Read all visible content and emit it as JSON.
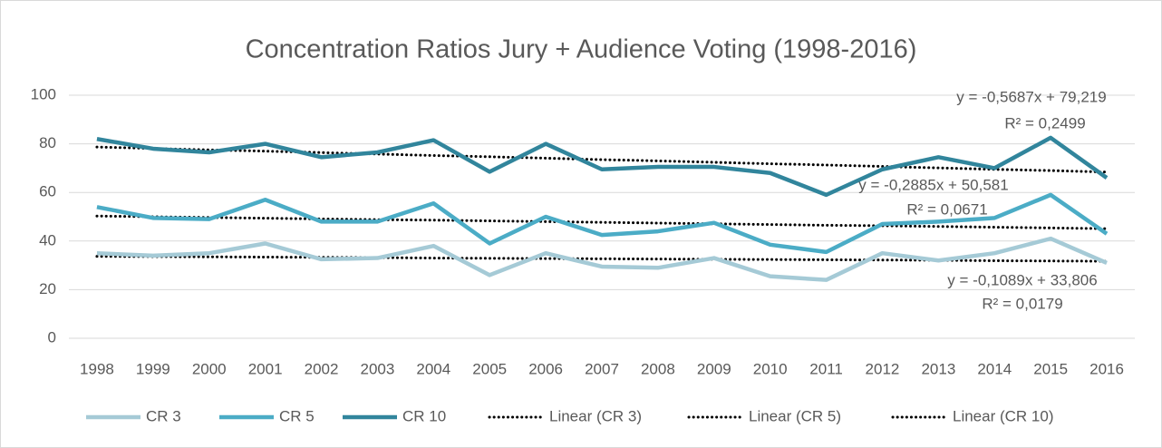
{
  "chart_data": {
    "type": "line",
    "title": "Concentration Ratios Jury + Audience Voting (1998-2016)",
    "categories": [
      "1998",
      "1999",
      "2000",
      "2001",
      "2002",
      "2003",
      "2004",
      "2005",
      "2006",
      "2007",
      "2008",
      "2009",
      "2010",
      "2011",
      "2012",
      "2013",
      "2014",
      "2015",
      "2016"
    ],
    "ylim": [
      0,
      100
    ],
    "yticks": [
      0,
      20,
      40,
      60,
      80,
      100
    ],
    "grid": true,
    "legend": "bottom",
    "series": [
      {
        "name": "CR 3",
        "color": "#a5cad6",
        "style": "solid",
        "values": [
          35,
          34,
          35,
          39,
          32.5,
          33,
          38,
          26,
          35,
          29.5,
          29,
          33,
          25.5,
          24,
          35,
          32,
          35,
          41,
          31
        ]
      },
      {
        "name": "CR 5",
        "color": "#4bacc6",
        "style": "solid",
        "values": [
          54,
          49.5,
          49,
          57,
          48,
          48,
          55.5,
          39,
          50,
          42.5,
          44,
          47.5,
          38.5,
          35.5,
          47,
          48,
          49.5,
          59,
          43
        ]
      },
      {
        "name": "CR 10",
        "color": "#31859c",
        "style": "solid",
        "values": [
          82,
          78,
          76.5,
          80,
          74.5,
          76.5,
          81.5,
          68.5,
          80,
          69.5,
          70.5,
          70.5,
          68,
          59,
          69.5,
          74.5,
          70,
          82.5,
          66
        ]
      },
      {
        "name": "Linear (CR 3)",
        "color": "#000000",
        "style": "dotted",
        "values": [
          33.7,
          33.6,
          33.5,
          33.4,
          33.3,
          33.2,
          33.0,
          32.9,
          32.8,
          32.7,
          32.6,
          32.5,
          32.4,
          32.3,
          32.2,
          32.1,
          31.9,
          31.8,
          31.7
        ]
      },
      {
        "name": "Linear (CR 5)",
        "color": "#000000",
        "style": "dotted",
        "values": [
          50.3,
          50.0,
          49.7,
          49.4,
          49.1,
          48.8,
          48.6,
          48.3,
          48.0,
          47.7,
          47.4,
          47.1,
          46.8,
          46.5,
          46.3,
          46.0,
          45.7,
          45.4,
          45.1
        ]
      },
      {
        "name": "Linear (CR 10)",
        "color": "#000000",
        "style": "dotted",
        "values": [
          78.7,
          78.1,
          77.5,
          77.0,
          76.4,
          75.8,
          75.2,
          74.7,
          74.1,
          73.5,
          73.0,
          72.4,
          71.8,
          71.3,
          70.7,
          70.1,
          69.5,
          69.0,
          68.4
        ]
      }
    ],
    "annotations": [
      [
        "y = -0,5687x + 79,219",
        "R² = 0,2499"
      ],
      [
        "y = -0,2885x + 50,581",
        "R² = 0,0671"
      ],
      [
        "y = -0,1089x + 33,806",
        "R² = 0,0179"
      ]
    ]
  }
}
